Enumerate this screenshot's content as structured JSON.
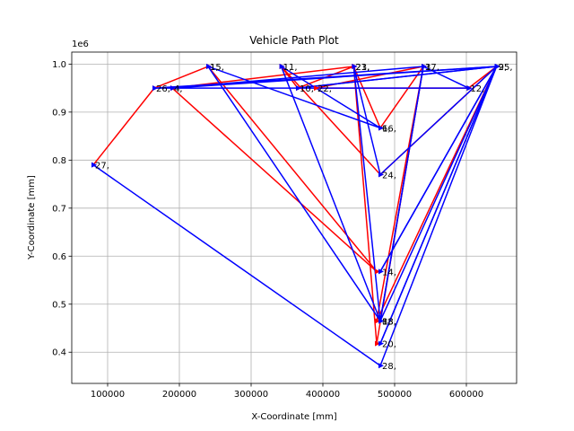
{
  "chart_data": {
    "type": "line",
    "title": "Vehicle Path Plot",
    "xlabel": "X-Coordinate [mm]",
    "ylabel": "Y-Coordinate [mm]",
    "y_offset_label": "1e6",
    "xlim": [
      50000,
      670000
    ],
    "ylim": [
      335000,
      1025000
    ],
    "x_ticks": [
      100000,
      200000,
      300000,
      400000,
      500000,
      600000
    ],
    "x_tick_labels": [
      "100000",
      "200000",
      "300000",
      "400000",
      "500000",
      "600000"
    ],
    "y_ticks": [
      400000,
      500000,
      600000,
      700000,
      800000,
      900000,
      1000000
    ],
    "y_tick_labels": [
      "0.4",
      "0.5",
      "0.6",
      "0.7",
      "0.8",
      "0.9",
      "1.0"
    ],
    "grid": true,
    "point_labels": [
      {
        "text": "1,",
        "x": 240000,
        "y": 995000
      },
      {
        "text": "15,",
        "x": 240000,
        "y": 995000
      },
      {
        "text": "11,",
        "x": 342000,
        "y": 995000
      },
      {
        "text": "1,",
        "x": 342000,
        "y": 995000
      },
      {
        "text": "21,",
        "x": 443000,
        "y": 995000
      },
      {
        "text": "23,",
        "x": 443000,
        "y": 995000
      },
      {
        "text": "3,",
        "x": 540000,
        "y": 995000
      },
      {
        "text": "17,",
        "x": 540000,
        "y": 995000
      },
      {
        "text": "9,",
        "x": 642000,
        "y": 995000
      },
      {
        "text": "25,",
        "x": 642000,
        "y": 995000
      },
      {
        "text": "26,",
        "x": 165000,
        "y": 950000
      },
      {
        "text": "4,",
        "x": 190000,
        "y": 950000
      },
      {
        "text": "10,",
        "x": 365000,
        "y": 950000
      },
      {
        "text": "22,",
        "x": 390000,
        "y": 950000
      },
      {
        "text": "12,",
        "x": 603000,
        "y": 950000
      },
      {
        "text": "6,",
        "x": 480000,
        "y": 867000
      },
      {
        "text": "16,",
        "x": 480000,
        "y": 867000
      },
      {
        "text": "27,",
        "x": 80000,
        "y": 790000
      },
      {
        "text": "24,",
        "x": 480000,
        "y": 770000
      },
      {
        "text": "14,",
        "x": 480000,
        "y": 568000
      },
      {
        "text": "8,",
        "x": 480000,
        "y": 465000
      },
      {
        "text": "13,",
        "x": 480000,
        "y": 465000
      },
      {
        "text": "18,",
        "x": 480000,
        "y": 465000
      },
      {
        "text": "20,",
        "x": 480000,
        "y": 418000
      },
      {
        "text": "28,",
        "x": 480000,
        "y": 372000
      }
    ],
    "series": [
      {
        "color": "#ff0000",
        "points": [
          [
            80000,
            790000
          ],
          [
            165000,
            950000
          ],
          [
            240000,
            995000
          ],
          [
            475000,
            568000
          ],
          [
            190000,
            950000
          ],
          [
            443000,
            995000
          ],
          [
            480000,
            867000
          ],
          [
            540000,
            995000
          ],
          [
            475000,
            465000
          ],
          [
            642000,
            995000
          ],
          [
            480000,
            770000
          ],
          [
            342000,
            995000
          ],
          [
            365000,
            950000
          ],
          [
            443000,
            995000
          ],
          [
            475000,
            418000
          ],
          [
            540000,
            995000
          ],
          [
            390000,
            950000
          ],
          [
            603000,
            950000
          ],
          [
            642000,
            995000
          ]
        ]
      },
      {
        "color": "#0000ff",
        "points": [
          [
            80000,
            790000
          ],
          [
            480000,
            372000
          ],
          [
            642000,
            995000
          ],
          [
            480000,
            465000
          ],
          [
            540000,
            995000
          ],
          [
            480000,
            465000
          ],
          [
            342000,
            995000
          ],
          [
            480000,
            867000
          ],
          [
            240000,
            995000
          ],
          [
            480000,
            465000
          ],
          [
            443000,
            995000
          ],
          [
            480000,
            770000
          ],
          [
            642000,
            995000
          ],
          [
            165000,
            950000
          ],
          [
            603000,
            950000
          ],
          [
            540000,
            995000
          ],
          [
            190000,
            950000
          ],
          [
            642000,
            995000
          ],
          [
            480000,
            568000
          ],
          [
            642000,
            995000
          ],
          [
            480000,
            418000
          ],
          [
            642000,
            995000
          ],
          [
            365000,
            950000
          ],
          [
            642000,
            995000
          ]
        ]
      }
    ]
  }
}
